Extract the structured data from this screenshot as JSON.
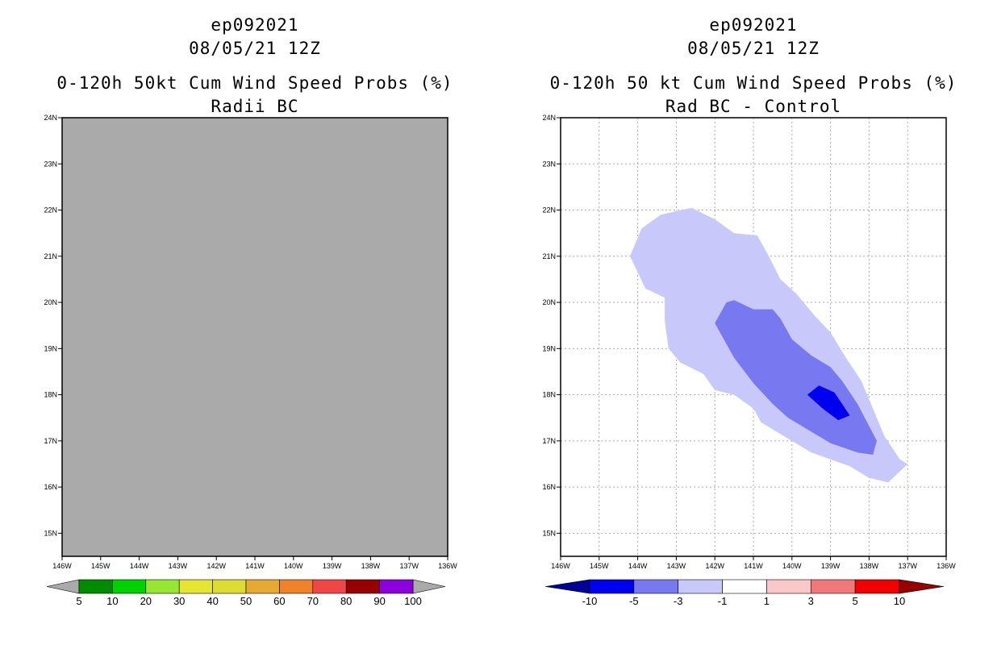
{
  "left_panel": {
    "title_storm": "ep092021",
    "title_date": "08/05/21 12Z",
    "title_product": "0-120h 50kt Cum Wind Speed Probs (%)",
    "title_variant": "Radii BC",
    "colors": {
      "fill": "#aaaaaa",
      "frame": "#000000"
    }
  },
  "right_panel": {
    "title_storm": "ep092021",
    "title_date": "08/05/21 12Z",
    "title_product": "0-120h 50 kt Cum Wind Speed Probs (%)",
    "title_variant": "Rad BC - Control",
    "colors": {
      "grid": "#aaaaaa",
      "frame": "#000000"
    }
  },
  "chart_data": [
    {
      "type": "heatmap",
      "title": "0-120h 50kt Cum Wind Speed Probs (%) Radii BC",
      "x_ticks": [
        "146W",
        "145W",
        "144W",
        "143W",
        "142W",
        "141W",
        "140W",
        "139W",
        "138W",
        "137W",
        "136W"
      ],
      "y_ticks": [
        "15N",
        "16N",
        "17N",
        "18N",
        "19N",
        "20N",
        "21N",
        "22N",
        "23N",
        "24N"
      ],
      "xlim": [
        -146,
        -136
      ],
      "ylim": [
        14.5,
        24
      ],
      "grid": false,
      "field": "no data (uniform undefined fill)",
      "colorbar": {
        "labels": [
          "5",
          "10",
          "20",
          "30",
          "40",
          "50",
          "60",
          "70",
          "80",
          "90",
          "100"
        ],
        "colors": [
          "#008c00",
          "#00d200",
          "#96e632",
          "#e6e632",
          "#dcdc32",
          "#e6aa32",
          "#f08228",
          "#f04646",
          "#960000",
          "#8c00dc"
        ],
        "end_colors": [
          "#aaaaaa",
          "#aaaaaa"
        ]
      }
    },
    {
      "type": "heatmap",
      "title": "0-120h 50 kt Cum Wind Speed Probs (%) Rad BC - Control",
      "x_ticks": [
        "146W",
        "145W",
        "144W",
        "143W",
        "142W",
        "141W",
        "140W",
        "139W",
        "138W",
        "137W",
        "136W"
      ],
      "y_ticks": [
        "15N",
        "16N",
        "17N",
        "18N",
        "19N",
        "20N",
        "21N",
        "22N",
        "23N",
        "24N"
      ],
      "xlim": [
        -146,
        -136
      ],
      "ylim": [
        14.5,
        24
      ],
      "grid": true,
      "contours": [
        {
          "level": "-3 to -1",
          "color": "#c8c8fa",
          "lonlat": [
            [
              -144.2,
              21.0
            ],
            [
              -143.9,
              21.6
            ],
            [
              -143.4,
              21.9
            ],
            [
              -142.6,
              22.05
            ],
            [
              -142.0,
              21.8
            ],
            [
              -141.5,
              21.5
            ],
            [
              -140.9,
              21.45
            ],
            [
              -140.6,
              21.0
            ],
            [
              -140.3,
              20.5
            ],
            [
              -139.9,
              20.2
            ],
            [
              -139.4,
              19.7
            ],
            [
              -139.0,
              19.35
            ],
            [
              -138.6,
              18.8
            ],
            [
              -138.2,
              18.3
            ],
            [
              -137.9,
              17.7
            ],
            [
              -137.6,
              17.1
            ],
            [
              -137.2,
              16.6
            ],
            [
              -137.0,
              16.5
            ],
            [
              -137.5,
              16.1
            ],
            [
              -138.0,
              16.2
            ],
            [
              -138.5,
              16.45
            ],
            [
              -139.5,
              16.75
            ],
            [
              -140.2,
              17.1
            ],
            [
              -140.8,
              17.4
            ],
            [
              -141.0,
              17.7
            ],
            [
              -141.5,
              18.0
            ],
            [
              -142.0,
              18.1
            ],
            [
              -142.3,
              18.45
            ],
            [
              -142.9,
              18.7
            ],
            [
              -143.2,
              19.0
            ],
            [
              -143.3,
              19.6
            ],
            [
              -143.3,
              20.1
            ],
            [
              -143.8,
              20.3
            ]
          ]
        },
        {
          "level": "-5 to -3",
          "color": "#7878f0",
          "lonlat": [
            [
              -142.0,
              19.55
            ],
            [
              -141.7,
              20.0
            ],
            [
              -141.5,
              20.05
            ],
            [
              -141.0,
              19.85
            ],
            [
              -140.5,
              19.85
            ],
            [
              -140.3,
              19.65
            ],
            [
              -140.0,
              19.2
            ],
            [
              -139.5,
              18.85
            ],
            [
              -139.0,
              18.6
            ],
            [
              -138.7,
              18.3
            ],
            [
              -138.3,
              17.8
            ],
            [
              -137.8,
              17.0
            ],
            [
              -137.9,
              16.7
            ],
            [
              -138.3,
              16.75
            ],
            [
              -139.0,
              16.95
            ],
            [
              -139.6,
              17.25
            ],
            [
              -140.1,
              17.5
            ],
            [
              -140.5,
              17.8
            ],
            [
              -141.0,
              18.25
            ],
            [
              -141.5,
              18.8
            ]
          ]
        },
        {
          "level": "-10 to -5",
          "color": "#0000f0",
          "lonlat": [
            [
              -139.6,
              18.0
            ],
            [
              -139.3,
              18.2
            ],
            [
              -138.9,
              18.05
            ],
            [
              -138.5,
              17.55
            ],
            [
              -138.8,
              17.45
            ],
            [
              -139.2,
              17.7
            ]
          ]
        }
      ],
      "colorbar": {
        "labels": [
          "-10",
          "-5",
          "-3",
          "-1",
          "1",
          "3",
          "5",
          "10"
        ],
        "colors": [
          "#0000f0",
          "#7878f0",
          "#c8c8fa",
          "#ffffff",
          "#fac8c8",
          "#f07878",
          "#f00000"
        ],
        "end_colors": [
          "#000096",
          "#960000"
        ]
      }
    }
  ]
}
